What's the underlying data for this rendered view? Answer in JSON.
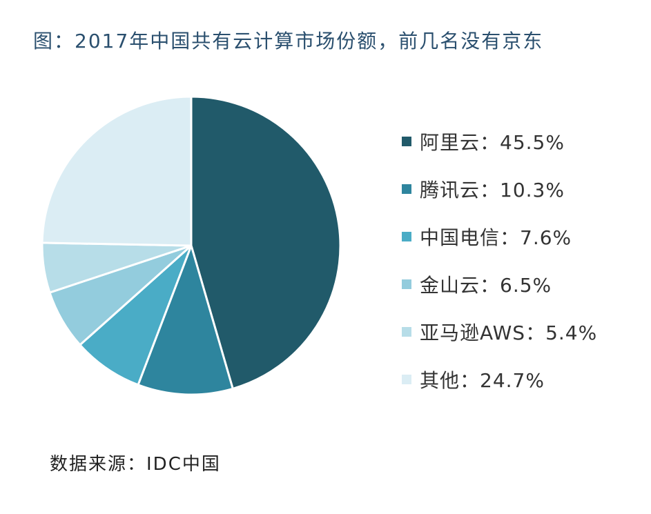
{
  "title": "图：2017年中国共有云计算市场份额，前几名没有京东",
  "source": "数据来源：IDC中国",
  "chart_data": {
    "type": "pie",
    "title": "图：2017年中国共有云计算市场份额，前几名没有京东",
    "slices": [
      {
        "label": "阿里云：45.5%",
        "name": "阿里云",
        "value": 45.5,
        "color": "#215a6a"
      },
      {
        "label": "腾讯云：10.3%",
        "name": "腾讯云",
        "value": 10.3,
        "color": "#2e859e"
      },
      {
        "label": "中国电信：7.6%",
        "name": "中国电信",
        "value": 7.6,
        "color": "#4aacc6"
      },
      {
        "label": "金山云：6.5%",
        "name": "金山云",
        "value": 6.5,
        "color": "#93ccdd"
      },
      {
        "label": "亚马逊AWS：5.4%",
        "name": "亚马逊AWS",
        "value": 5.4,
        "color": "#b7dde8"
      },
      {
        "label": "其他：24.7%",
        "name": "其他",
        "value": 24.7,
        "color": "#dbedf4"
      }
    ],
    "legend_position": "right"
  }
}
